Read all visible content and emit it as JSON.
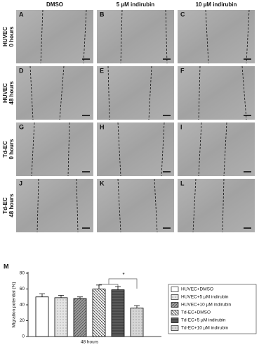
{
  "columns": [
    "DMSO",
    "5 µM indirubin",
    "10 µM indirubin"
  ],
  "rows": [
    [
      "HUVEC",
      "0 hours"
    ],
    [
      "HUVEC",
      "48 hours"
    ],
    [
      "Td-EC",
      "0 hours"
    ],
    [
      "Td-EC",
      "48 hours"
    ]
  ],
  "panels": [
    "A",
    "B",
    "C",
    "D",
    "E",
    "F",
    "G",
    "H",
    "I",
    "J",
    "K",
    "L"
  ],
  "chart_data": {
    "type": "bar",
    "panel_label": "M",
    "ylabel": "Migration potential (%)",
    "categories": [
      "48 hours"
    ],
    "ylim": [
      0,
      80
    ],
    "yticks": [
      0,
      20,
      40,
      60,
      80
    ],
    "annotation": "*",
    "series": [
      {
        "name": "HUVEC+DMSO",
        "color": "#ffffff",
        "pattern": "none",
        "values": [
          50
        ],
        "errors": [
          4
        ]
      },
      {
        "name": "HUVEC+5 µM indirubin",
        "color": "#e4e4e4",
        "pattern": "dots",
        "values": [
          49
        ],
        "errors": [
          3
        ]
      },
      {
        "name": "HUVEC+10 µM indirubin",
        "color": "#9a9a9a",
        "pattern": "hatch",
        "values": [
          48
        ],
        "errors": [
          2
        ]
      },
      {
        "name": "Td-EC+DMSO",
        "color": "#f2f2f2",
        "pattern": "diag",
        "values": [
          60
        ],
        "errors": [
          5
        ]
      },
      {
        "name": "Td-EC+5 µM indirubin",
        "color": "#5a5a5a",
        "pattern": "dense",
        "values": [
          59
        ],
        "errors": [
          4
        ]
      },
      {
        "name": "Td-EC+10 µM indirubin",
        "color": "#d6d6d6",
        "pattern": "dots",
        "values": [
          36
        ],
        "errors": [
          3
        ]
      }
    ]
  }
}
